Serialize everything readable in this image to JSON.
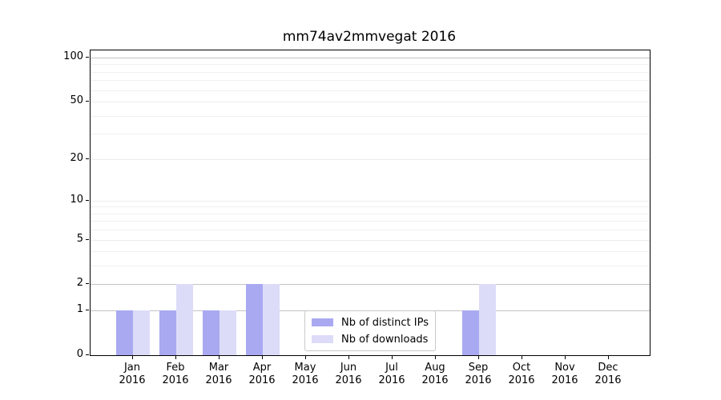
{
  "title": "mm74av2mmvegat 2016",
  "chart_data": {
    "type": "bar",
    "categories": [
      "Jan",
      "Feb",
      "Mar",
      "Apr",
      "May",
      "Jun",
      "Jul",
      "Aug",
      "Sep",
      "Oct",
      "Nov",
      "Dec"
    ],
    "x_sublabel": "2016",
    "series": [
      {
        "name": "Nb of distinct IPs",
        "color": "#a9a9f1",
        "values": [
          1,
          1,
          1,
          2,
          0,
          0,
          0,
          0,
          1,
          0,
          0,
          0
        ]
      },
      {
        "name": "Nb of downloads",
        "color": "#dcdcf8",
        "values": [
          1,
          2,
          1,
          2,
          0,
          0,
          0,
          0,
          2,
          0,
          0,
          0
        ]
      }
    ],
    "y_scale": "log1p",
    "ylim": [
      0,
      112
    ],
    "xlim": [
      -0.98,
      11.95
    ],
    "y_major_ticks": [
      0,
      1,
      2,
      5,
      10,
      20,
      50,
      100
    ],
    "y_minor_ticks": [
      3,
      4,
      6,
      7,
      8,
      9,
      30,
      40,
      60,
      70,
      80,
      90
    ],
    "emphasized_gridlines": [
      1,
      2,
      100
    ],
    "grid": true,
    "legend_position": "lower center",
    "colors": {
      "grid_minor": "#f0f0f0",
      "grid_major": "#ececec",
      "grid_emphasis": "#c3c3c3",
      "axis": "#000000"
    }
  }
}
